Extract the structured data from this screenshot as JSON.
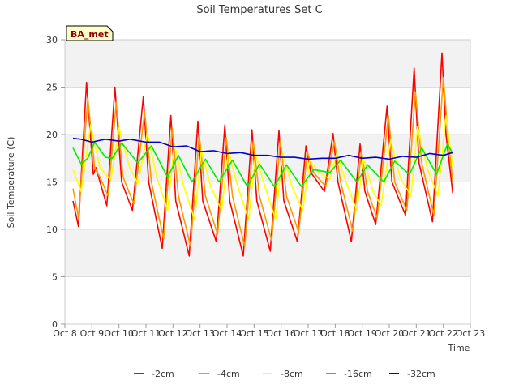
{
  "chart_data": {
    "type": "line",
    "title": "Soil Temperatures Set C",
    "xlabel": "Time",
    "ylabel": "Soil Temperature (C)",
    "badge": "BA_met",
    "xlim": [
      8,
      23
    ],
    "ylim": [
      0,
      30
    ],
    "yticks": [
      0,
      5,
      10,
      15,
      20,
      25,
      30
    ],
    "xticks": [
      {
        "v": 8,
        "label": "Oct 8"
      },
      {
        "v": 9,
        "label": "Oct 9"
      },
      {
        "v": 10,
        "label": "Oct 10"
      },
      {
        "v": 11,
        "label": "Oct 11"
      },
      {
        "v": 12,
        "label": "Oct 12"
      },
      {
        "v": 13,
        "label": "Oct 13"
      },
      {
        "v": 14,
        "label": "Oct 14"
      },
      {
        "v": 15,
        "label": "Oct 15"
      },
      {
        "v": 16,
        "label": "Oct 16"
      },
      {
        "v": 17,
        "label": "Oct 17"
      },
      {
        "v": 18,
        "label": "Oct 18"
      },
      {
        "v": 19,
        "label": "Oct 19"
      },
      {
        "v": 20,
        "label": "Oct 20"
      },
      {
        "v": 21,
        "label": "Oct 21"
      },
      {
        "v": 22,
        "label": "Oct 22"
      },
      {
        "v": 23,
        "label": "Oct 23"
      }
    ],
    "series": [
      {
        "name": "-2cm",
        "color": "#ff0000",
        "points": [
          [
            8.3,
            13.0
          ],
          [
            8.5,
            10.3
          ],
          [
            8.8,
            25.5
          ],
          [
            9.05,
            15.8
          ],
          [
            9.15,
            16.5
          ],
          [
            9.3,
            15.0
          ],
          [
            9.55,
            12.5
          ],
          [
            9.85,
            25.0
          ],
          [
            10.1,
            15.0
          ],
          [
            10.5,
            12.0
          ],
          [
            10.9,
            24.0
          ],
          [
            11.1,
            15.0
          ],
          [
            11.6,
            8.0
          ],
          [
            11.92,
            22.0
          ],
          [
            12.1,
            13.0
          ],
          [
            12.6,
            7.2
          ],
          [
            12.92,
            21.4
          ],
          [
            13.1,
            13.0
          ],
          [
            13.6,
            8.7
          ],
          [
            13.92,
            21.0
          ],
          [
            14.1,
            13.0
          ],
          [
            14.6,
            7.2
          ],
          [
            14.92,
            20.5
          ],
          [
            15.1,
            13.0
          ],
          [
            15.6,
            7.7
          ],
          [
            15.92,
            20.4
          ],
          [
            16.1,
            13.0
          ],
          [
            16.6,
            8.7
          ],
          [
            16.92,
            18.8
          ],
          [
            17.1,
            16.0
          ],
          [
            17.6,
            14.0
          ],
          [
            17.92,
            20.1
          ],
          [
            18.1,
            15.0
          ],
          [
            18.6,
            8.7
          ],
          [
            18.92,
            19.0
          ],
          [
            19.1,
            14.0
          ],
          [
            19.5,
            10.5
          ],
          [
            19.92,
            23.0
          ],
          [
            20.1,
            15.0
          ],
          [
            20.6,
            11.5
          ],
          [
            20.92,
            27.0
          ],
          [
            21.1,
            17.0
          ],
          [
            21.6,
            10.8
          ],
          [
            21.95,
            28.6
          ],
          [
            22.1,
            20.0
          ],
          [
            22.35,
            13.8
          ]
        ]
      },
      {
        "name": "-4cm",
        "color": "#ff9900",
        "points": [
          [
            8.3,
            14.3
          ],
          [
            8.5,
            11.3
          ],
          [
            8.85,
            23.8
          ],
          [
            9.1,
            16.5
          ],
          [
            9.3,
            15.5
          ],
          [
            9.6,
            13.5
          ],
          [
            9.9,
            23.4
          ],
          [
            10.15,
            15.5
          ],
          [
            10.55,
            12.7
          ],
          [
            10.95,
            22.4
          ],
          [
            11.2,
            15.0
          ],
          [
            11.65,
            9.0
          ],
          [
            11.97,
            20.7
          ],
          [
            12.2,
            13.5
          ],
          [
            12.65,
            8.2
          ],
          [
            12.97,
            20.0
          ],
          [
            13.2,
            13.5
          ],
          [
            13.65,
            9.5
          ],
          [
            13.97,
            19.7
          ],
          [
            14.2,
            13.5
          ],
          [
            14.65,
            8.2
          ],
          [
            14.97,
            19.3
          ],
          [
            15.2,
            13.5
          ],
          [
            15.65,
            8.8
          ],
          [
            15.97,
            19.4
          ],
          [
            16.2,
            13.5
          ],
          [
            16.65,
            9.7
          ],
          [
            16.97,
            18.2
          ],
          [
            17.2,
            16.0
          ],
          [
            17.65,
            14.5
          ],
          [
            17.97,
            19.3
          ],
          [
            18.2,
            15.0
          ],
          [
            18.65,
            9.8
          ],
          [
            18.97,
            18.3
          ],
          [
            19.2,
            14.0
          ],
          [
            19.55,
            11.2
          ],
          [
            19.97,
            22.0
          ],
          [
            20.2,
            15.0
          ],
          [
            20.65,
            12.0
          ],
          [
            20.97,
            24.5
          ],
          [
            21.2,
            17.0
          ],
          [
            21.65,
            11.5
          ],
          [
            22.0,
            26.0
          ],
          [
            22.2,
            19.0
          ],
          [
            22.35,
            15.0
          ]
        ]
      },
      {
        "name": "-8cm",
        "color": "#ffff00",
        "points": [
          [
            8.3,
            16.3
          ],
          [
            8.6,
            14.0
          ],
          [
            8.95,
            21.0
          ],
          [
            9.3,
            16.5
          ],
          [
            9.7,
            15.2
          ],
          [
            10.0,
            20.7
          ],
          [
            10.4,
            16.5
          ],
          [
            10.7,
            14.8
          ],
          [
            11.05,
            20.2
          ],
          [
            11.4,
            15.5
          ],
          [
            11.8,
            12.0
          ],
          [
            12.05,
            19.0
          ],
          [
            12.4,
            14.5
          ],
          [
            12.8,
            11.0
          ],
          [
            13.05,
            18.3
          ],
          [
            13.4,
            14.5
          ],
          [
            13.8,
            12.0
          ],
          [
            14.05,
            18.3
          ],
          [
            14.4,
            14.5
          ],
          [
            14.8,
            11.0
          ],
          [
            15.05,
            18.0
          ],
          [
            15.4,
            14.5
          ],
          [
            15.8,
            11.0
          ],
          [
            16.05,
            18.2
          ],
          [
            16.4,
            14.5
          ],
          [
            16.8,
            12.0
          ],
          [
            17.05,
            17.3
          ],
          [
            17.4,
            16.0
          ],
          [
            17.8,
            15.3
          ],
          [
            18.05,
            18.0
          ],
          [
            18.4,
            15.0
          ],
          [
            18.8,
            12.0
          ],
          [
            19.05,
            17.5
          ],
          [
            19.4,
            14.0
          ],
          [
            19.7,
            12.5
          ],
          [
            20.05,
            19.5
          ],
          [
            20.4,
            15.5
          ],
          [
            20.8,
            13.5
          ],
          [
            21.05,
            20.8
          ],
          [
            21.4,
            16.5
          ],
          [
            21.8,
            13.5
          ],
          [
            22.1,
            22.0
          ],
          [
            22.35,
            16.5
          ]
        ]
      },
      {
        "name": "-16cm",
        "color": "#00ee00",
        "points": [
          [
            8.3,
            18.6
          ],
          [
            8.6,
            16.9
          ],
          [
            8.85,
            17.5
          ],
          [
            9.1,
            19.2
          ],
          [
            9.5,
            17.6
          ],
          [
            9.75,
            17.5
          ],
          [
            10.1,
            19.1
          ],
          [
            10.7,
            17.0
          ],
          [
            11.2,
            18.8
          ],
          [
            11.8,
            15.5
          ],
          [
            12.2,
            17.8
          ],
          [
            12.7,
            15.0
          ],
          [
            13.2,
            17.4
          ],
          [
            13.7,
            15.0
          ],
          [
            14.2,
            17.3
          ],
          [
            14.75,
            14.5
          ],
          [
            15.2,
            16.9
          ],
          [
            15.75,
            14.5
          ],
          [
            16.2,
            16.8
          ],
          [
            16.75,
            14.5
          ],
          [
            17.2,
            16.3
          ],
          [
            17.8,
            16.0
          ],
          [
            18.2,
            17.3
          ],
          [
            18.8,
            15.0
          ],
          [
            19.2,
            16.8
          ],
          [
            19.8,
            15.0
          ],
          [
            20.2,
            17.2
          ],
          [
            20.75,
            15.8
          ],
          [
            21.2,
            18.6
          ],
          [
            21.75,
            15.8
          ],
          [
            22.15,
            19.0
          ],
          [
            22.35,
            18.0
          ]
        ]
      },
      {
        "name": "-32cm",
        "color": "#0000cc",
        "points": [
          [
            8.3,
            19.6
          ],
          [
            8.6,
            19.5
          ],
          [
            9.0,
            19.2
          ],
          [
            9.5,
            19.5
          ],
          [
            10.0,
            19.3
          ],
          [
            10.4,
            19.5
          ],
          [
            11.0,
            19.2
          ],
          [
            11.5,
            19.2
          ],
          [
            12.0,
            18.7
          ],
          [
            12.5,
            18.8
          ],
          [
            13.0,
            18.2
          ],
          [
            13.5,
            18.3
          ],
          [
            14.0,
            18.0
          ],
          [
            14.5,
            18.1
          ],
          [
            15.0,
            17.8
          ],
          [
            15.5,
            17.8
          ],
          [
            16.0,
            17.6
          ],
          [
            16.5,
            17.6
          ],
          [
            17.0,
            17.4
          ],
          [
            17.5,
            17.5
          ],
          [
            18.0,
            17.5
          ],
          [
            18.5,
            17.8
          ],
          [
            19.0,
            17.5
          ],
          [
            19.5,
            17.6
          ],
          [
            20.0,
            17.4
          ],
          [
            20.5,
            17.7
          ],
          [
            21.0,
            17.6
          ],
          [
            21.5,
            18.0
          ],
          [
            22.0,
            17.8
          ],
          [
            22.35,
            18.1
          ]
        ]
      }
    ]
  }
}
